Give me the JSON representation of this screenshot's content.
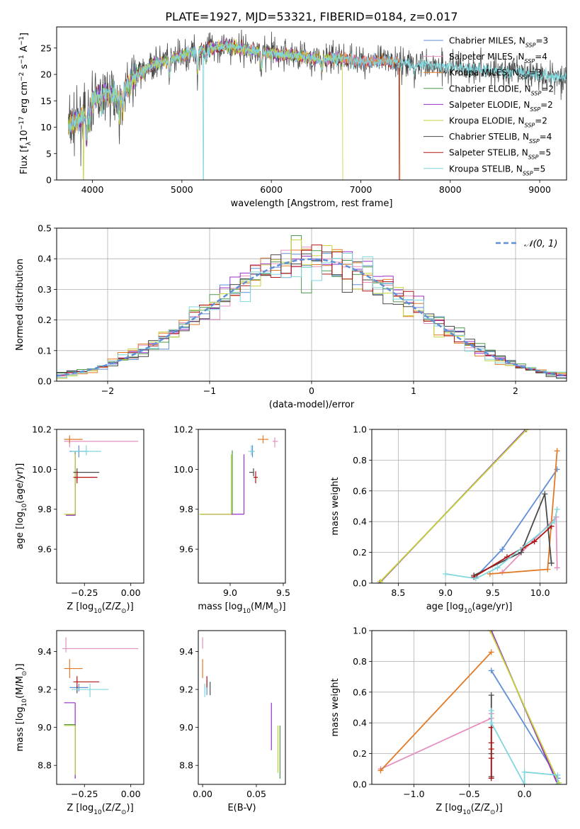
{
  "figure": {
    "title": "PLATE=1927, MJD=53321, FIBERID=0184, z=0.017"
  },
  "colors": {
    "Chabrier MILES": "#5f8fd6",
    "Salpeter MILES": "#e58fbf",
    "Kroupa MILES": "#e37a25",
    "Chabrier ELODIE": "#4e9a4e",
    "Salpeter ELODIE": "#9b2fc9",
    "Kroupa ELODIE": "#c6d33a",
    "Chabrier STELIB": "#4a4a4a",
    "Salpeter STELIB": "#b01414",
    "Kroupa STELIB": "#7fd6dc"
  },
  "chart_data": [
    {
      "type": "line",
      "id": "spectrum",
      "xlabel": "wavelength [Angstrom, rest frame]",
      "ylabel": "Flux [f_λ10^-17 erg cm^-2 s^-1 A^-1]",
      "xlim": [
        3600,
        9300
      ],
      "ylim": [
        0,
        29
      ],
      "xticks": [
        4000,
        5000,
        6000,
        7000,
        8000,
        9000
      ],
      "yticks": [
        0,
        5,
        10,
        15,
        20,
        25
      ],
      "legend_position": "top-right",
      "legend": [
        {
          "name": "Chabrier MILES",
          "nssp": "3"
        },
        {
          "name": "Salpeter MILES",
          "nssp": "4"
        },
        {
          "name": "Kroupa MILES",
          "nssp": "3"
        },
        {
          "name": "Chabrier ELODIE",
          "nssp": "2"
        },
        {
          "name": "Salpeter ELODIE",
          "nssp": "2"
        },
        {
          "name": "Kroupa ELODIE",
          "nssp": "2"
        },
        {
          "name": "Chabrier STELIB",
          "nssp": "4"
        },
        {
          "name": "Salpeter STELIB",
          "nssp": "5"
        },
        {
          "name": "Kroupa STELIB",
          "nssp": "5"
        }
      ],
      "continuum": {
        "x": [
          3730,
          3800,
          3900,
          4000,
          4100,
          4300,
          4500,
          4700,
          5000,
          5300,
          5500,
          5800,
          6000,
          6300,
          6500,
          6800,
          7000,
          7300,
          7600,
          8000,
          8300,
          8600,
          9000,
          9300
        ],
        "y": [
          10,
          11,
          12,
          15,
          16.5,
          16,
          20,
          22,
          23.5,
          25,
          25.5,
          24.5,
          24,
          23.5,
          23,
          23,
          22.5,
          22.5,
          22,
          21.5,
          21,
          20.5,
          20,
          19.5
        ]
      },
      "dropouts": [
        {
          "series": "Kroupa STELIB",
          "x": 5240
        },
        {
          "series": "Kroupa ELODIE",
          "x": 6800
        },
        {
          "series": "Salpeter STELIB",
          "x": 7430
        },
        {
          "series": "Kroupa MILES",
          "x": 7440
        },
        {
          "series": "Kroupa ELODIE",
          "x": 3900
        }
      ]
    },
    {
      "type": "bar",
      "id": "residuals",
      "xlabel": "(data-model)/error",
      "ylabel": "Normed distribution",
      "xlim": [
        -2.5,
        2.5
      ],
      "ylim": [
        0,
        0.5
      ],
      "xticks": [
        -2,
        -1,
        0,
        1,
        2
      ],
      "yticks": [
        0.0,
        0.1,
        0.2,
        0.3,
        0.4,
        0.5
      ],
      "grid": true,
      "legend_position": "top-right",
      "reference_label": "N(0,1)",
      "bin_width": 0.1
    },
    {
      "type": "scatter",
      "id": "age-vs-Z",
      "xlabel": "Z [log10(Z/Z⊙)]",
      "ylabel": "age  [log10(age/yr)]",
      "xlim": [
        -0.4,
        0.07
      ],
      "ylim": [
        9.43,
        10.2
      ],
      "xticks": [
        -0.25,
        0.0
      ],
      "yticks": [
        9.6,
        9.8,
        10.0,
        10.2
      ],
      "points": [
        {
          "series": "Chabrier MILES",
          "x": -0.28,
          "y": 10.09,
          "xe": [
            0.05,
            0.05
          ],
          "ye": [
            0.03,
            0.03
          ]
        },
        {
          "series": "Salpeter MILES",
          "x": -0.33,
          "y": 10.14,
          "xe": [
            0.03,
            0.37
          ],
          "ye": [
            0.03,
            0.02
          ]
        },
        {
          "series": "Kroupa MILES",
          "x": -0.33,
          "y": 10.15,
          "xe": [
            0.03,
            0.07
          ],
          "ye": [
            0.02,
            0.02
          ]
        },
        {
          "series": "Chabrier ELODIE",
          "x": -0.3,
          "y": 9.77,
          "xe": [
            0.05,
            0.0
          ],
          "ye": [
            0.0,
            0.32
          ]
        },
        {
          "series": "Salpeter ELODIE",
          "x": -0.3,
          "y": 9.77,
          "xe": [
            0.05,
            0.0
          ],
          "ye": [
            0.0,
            0.3
          ]
        },
        {
          "series": "Kroupa ELODIE",
          "x": -0.3,
          "y": 9.775,
          "xe": [
            0.06,
            0.0
          ],
          "ye": [
            0.0,
            0.3
          ]
        },
        {
          "series": "Chabrier STELIB",
          "x": -0.29,
          "y": 9.985,
          "xe": [
            0.02,
            0.12
          ],
          "ye": [
            0.04,
            0.02
          ]
        },
        {
          "series": "Salpeter STELIB",
          "x": -0.29,
          "y": 9.96,
          "xe": [
            0.02,
            0.11
          ],
          "ye": [
            0.03,
            0.03
          ]
        },
        {
          "series": "Kroupa STELIB",
          "x": -0.24,
          "y": 10.09,
          "xe": [
            0.08,
            0.08
          ],
          "ye": [
            0.02,
            0.03
          ]
        }
      ]
    },
    {
      "type": "scatter",
      "id": "age-vs-mass",
      "xlabel": "mass [log10(M/M⊙)]",
      "ylabel": "",
      "xlim": [
        8.7,
        9.52
      ],
      "ylim": [
        9.43,
        10.2
      ],
      "xticks": [
        9.0,
        9.5
      ],
      "yticks": [
        9.6,
        9.8,
        10.0,
        10.2
      ],
      "points": [
        {
          "series": "Chabrier MILES",
          "x": 9.21,
          "y": 10.09,
          "xe": [
            0.02,
            0.02
          ],
          "ye": [
            0.03,
            0.03
          ]
        },
        {
          "series": "Salpeter MILES",
          "x": 9.42,
          "y": 10.14,
          "xe": [
            0.02,
            0.03
          ],
          "ye": [
            0.03,
            0.02
          ]
        },
        {
          "series": "Kroupa MILES",
          "x": 9.31,
          "y": 10.15,
          "xe": [
            0.05,
            0.05
          ],
          "ye": [
            0.02,
            0.02
          ]
        },
        {
          "series": "Chabrier ELODIE",
          "x": 9.02,
          "y": 9.775,
          "xe": [
            0.3,
            0.0
          ],
          "ye": [
            0.0,
            0.32
          ]
        },
        {
          "series": "Salpeter ELODIE",
          "x": 9.13,
          "y": 9.775,
          "xe": [
            0.4,
            0.0
          ],
          "ye": [
            0.0,
            0.3
          ]
        },
        {
          "series": "Kroupa ELODIE",
          "x": 9.01,
          "y": 9.775,
          "xe": [
            0.3,
            0.0
          ],
          "ye": [
            0.0,
            0.3
          ]
        },
        {
          "series": "Chabrier STELIB",
          "x": 9.22,
          "y": 9.985,
          "xe": [
            0.04,
            0.0
          ],
          "ye": [
            0.02,
            0.02
          ]
        },
        {
          "series": "Salpeter STELIB",
          "x": 9.24,
          "y": 9.96,
          "xe": [
            0.02,
            0.02
          ],
          "ye": [
            0.03,
            0.03
          ]
        },
        {
          "series": "Kroupa STELIB",
          "x": 9.2,
          "y": 10.09,
          "xe": [
            0.03,
            0.03
          ],
          "ye": [
            0.02,
            0.03
          ]
        }
      ]
    },
    {
      "type": "line",
      "id": "weight-vs-age",
      "xlabel": "age  [log10(age/yr)]",
      "ylabel": "mass weight",
      "xlim": [
        8.22,
        10.28
      ],
      "ylim": [
        0,
        1
      ],
      "xticks": [
        8.5,
        9.0,
        9.5,
        10.0
      ],
      "yticks": [
        0.0,
        0.2,
        0.4,
        0.6,
        0.8,
        1.0
      ],
      "grid": true,
      "series": [
        {
          "name": "Chabrier MILES",
          "x": [
            9.32,
            9.6,
            10.18
          ],
          "y": [
            0.04,
            0.22,
            0.74
          ]
        },
        {
          "name": "Salpeter MILES",
          "x": [
            9.6,
            10.17,
            10.18
          ],
          "y": [
            0.07,
            0.43,
            0.1
          ]
        },
        {
          "name": "Kroupa MILES",
          "x": [
            9.47,
            10.08,
            10.18
          ],
          "y": [
            0.06,
            0.09,
            0.86
          ]
        },
        {
          "name": "Chabrier ELODIE",
          "x": [
            8.3,
            9.85
          ],
          "y": [
            0.0,
            1.0
          ]
        },
        {
          "name": "Salpeter ELODIE",
          "x": [
            8.3,
            9.85
          ],
          "y": [
            0.0,
            1.0
          ]
        },
        {
          "name": "Kroupa ELODIE",
          "x": [
            8.31,
            9.86
          ],
          "y": [
            0.01,
            1.0
          ]
        },
        {
          "name": "Chabrier STELIB",
          "x": [
            9.3,
            9.8,
            10.05,
            10.12
          ],
          "y": [
            0.05,
            0.2,
            0.58,
            0.13
          ]
        },
        {
          "name": "Salpeter STELIB",
          "x": [
            9.3,
            9.65,
            9.82,
            9.94,
            10.12
          ],
          "y": [
            0.04,
            0.17,
            0.23,
            0.27,
            0.37
          ]
        },
        {
          "name": "Kroupa STELIB",
          "x": [
            9.0,
            9.32,
            9.55,
            10.15,
            10.18
          ],
          "y": [
            0.06,
            0.03,
            0.1,
            0.4,
            0.48
          ]
        }
      ]
    },
    {
      "type": "scatter",
      "id": "mass-vs-Z",
      "xlabel": "Z [log10(Z/Z⊙)]",
      "ylabel": "mass [log10(M/M⊙)]",
      "xlim": [
        -0.4,
        0.07
      ],
      "ylim": [
        8.7,
        9.51
      ],
      "xticks": [
        -0.25,
        0.0
      ],
      "yticks": [
        8.8,
        9.0,
        9.2,
        9.4
      ],
      "points": [
        {
          "series": "Chabrier MILES",
          "x": -0.28,
          "y": 9.21,
          "xe": [
            0.05,
            0.05
          ],
          "ye": [
            0.02,
            0.02
          ]
        },
        {
          "series": "Salpeter MILES",
          "x": -0.35,
          "y": 9.415,
          "xe": [
            0.02,
            0.39
          ],
          "ye": [
            0.02,
            0.06
          ]
        },
        {
          "series": "Kroupa MILES",
          "x": -0.33,
          "y": 9.31,
          "xe": [
            0.03,
            0.07
          ],
          "ye": [
            0.05,
            0.05
          ]
        },
        {
          "series": "Chabrier ELODIE",
          "x": -0.3,
          "y": 9.015,
          "xe": [
            0.06,
            0.0
          ],
          "ye": [
            0.28,
            0.0
          ]
        },
        {
          "series": "Salpeter ELODIE",
          "x": -0.3,
          "y": 9.13,
          "xe": [
            0.06,
            0.0
          ],
          "ye": [
            0.4,
            0.0
          ]
        },
        {
          "series": "Kroupa ELODIE",
          "x": -0.3,
          "y": 9.01,
          "xe": [
            0.06,
            0.0
          ],
          "ye": [
            0.26,
            0.0
          ]
        },
        {
          "series": "Chabrier STELIB",
          "x": -0.29,
          "y": 9.22,
          "xe": [
            0.0,
            0.0
          ],
          "ye": [
            0.04,
            0.0
          ]
        },
        {
          "series": "Salpeter STELIB",
          "x": -0.29,
          "y": 9.24,
          "xe": [
            0.02,
            0.12
          ],
          "ye": [
            0.03,
            0.03
          ]
        },
        {
          "series": "Kroupa STELIB",
          "x": -0.22,
          "y": 9.2,
          "xe": [
            0.1,
            0.1
          ],
          "ye": [
            0.04,
            0.03
          ]
        }
      ]
    },
    {
      "type": "scatter",
      "id": "mass-vs-ebv",
      "xlabel": "E(B-V)",
      "ylabel": "",
      "xlim": [
        -0.004,
        0.077
      ],
      "ylim": [
        8.7,
        9.51
      ],
      "xticks": [
        0.0,
        0.05
      ],
      "yticks": [
        8.8,
        9.0,
        9.2,
        9.4
      ],
      "points": [
        {
          "series": "Chabrier MILES",
          "x": 0.004,
          "y": 9.21,
          "xe": [
            0.0,
            0.0
          ],
          "ye": [
            0.04,
            0.04
          ]
        },
        {
          "series": "Salpeter MILES",
          "x": 0.0,
          "y": 9.415,
          "xe": [
            0.0,
            0.0
          ],
          "ye": [
            0.0,
            0.06
          ]
        },
        {
          "series": "Kroupa MILES",
          "x": 0.0,
          "y": 9.31,
          "xe": [
            0.0,
            0.0
          ],
          "ye": [
            0.05,
            0.05
          ]
        },
        {
          "series": "Chabrier ELODIE",
          "x": 0.072,
          "y": 9.01,
          "xe": [
            0.0,
            0.0
          ],
          "ye": [
            0.28,
            0.0
          ]
        },
        {
          "series": "Salpeter ELODIE",
          "x": 0.064,
          "y": 9.0,
          "xe": [
            0.0,
            0.0
          ],
          "ye": [
            0.12,
            0.13
          ]
        },
        {
          "series": "Kroupa ELODIE",
          "x": 0.07,
          "y": 8.9,
          "xe": [
            0.0,
            0.0
          ],
          "ye": [
            0.14,
            0.11
          ]
        },
        {
          "series": "Chabrier STELIB",
          "x": 0.007,
          "y": 9.2,
          "xe": [
            0.0,
            0.0
          ],
          "ye": [
            0.03,
            0.04
          ]
        },
        {
          "series": "Salpeter STELIB",
          "x": 0.004,
          "y": 9.24,
          "xe": [
            0.0,
            0.0
          ],
          "ye": [
            0.03,
            0.03
          ]
        },
        {
          "series": "Kroupa STELIB",
          "x": 0.002,
          "y": 9.2,
          "xe": [
            0.0,
            0.0
          ],
          "ye": [
            0.04,
            0.03
          ]
        }
      ]
    },
    {
      "type": "line",
      "id": "weight-vs-Z",
      "xlabel": "Z [log10(Z/Z⊙)]",
      "ylabel": "mass weight",
      "xlim": [
        -1.38,
        0.38
      ],
      "ylim": [
        0,
        1
      ],
      "xticks": [
        -1.0,
        -0.5,
        0.0
      ],
      "yticks": [
        0.0,
        0.2,
        0.4,
        0.6,
        0.8,
        1.0
      ],
      "grid": true,
      "series": [
        {
          "name": "Chabrier MILES",
          "x": [
            -0.3,
            0.3
          ],
          "y": [
            0.74,
            0.04
          ]
        },
        {
          "name": "Salpeter MILES",
          "x": [
            -1.3,
            -0.3,
            -0.3
          ],
          "y": [
            0.1,
            0.43,
            0.46
          ]
        },
        {
          "name": "Kroupa MILES",
          "x": [
            -1.3,
            -0.3
          ],
          "y": [
            0.09,
            0.86
          ]
        },
        {
          "name": "Chabrier ELODIE",
          "x": [
            -0.3,
            0.3
          ],
          "y": [
            1.0,
            0.0
          ]
        },
        {
          "name": "Salpeter ELODIE",
          "x": [
            -0.3,
            0.3
          ],
          "y": [
            1.0,
            0.0
          ]
        },
        {
          "name": "Kroupa ELODIE",
          "x": [
            -0.31,
            0.31
          ],
          "y": [
            1.0,
            0.01
          ]
        },
        {
          "name": "Chabrier STELIB",
          "x": [
            -0.3,
            -0.3,
            -0.3
          ],
          "y": [
            0.58,
            0.2,
            0.05
          ]
        },
        {
          "name": "Salpeter STELIB",
          "x": [
            -0.3,
            -0.3,
            -0.3,
            -0.3,
            -0.3
          ],
          "y": [
            0.37,
            0.27,
            0.23,
            0.17,
            0.04
          ]
        },
        {
          "name": "Kroupa STELIB",
          "x": [
            -0.3,
            -0.3,
            0.0,
            0.0,
            0.3,
            0.3
          ],
          "y": [
            0.48,
            0.4,
            0.0,
            0.08,
            0.06,
            0.0
          ]
        }
      ]
    }
  ]
}
